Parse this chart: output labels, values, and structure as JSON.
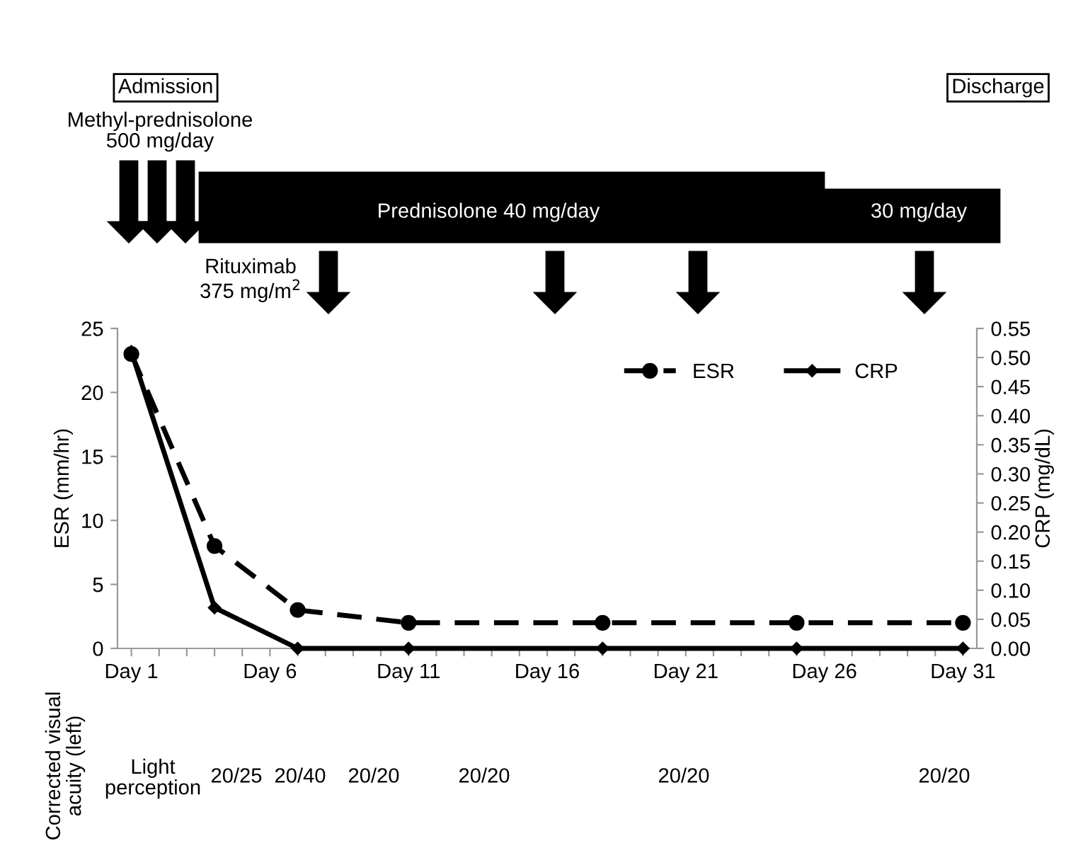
{
  "chart_data": {
    "type": "line",
    "xlabel": null,
    "ylabel": "ESR (mm/hr)",
    "y2label": "CRP (mg/dL)",
    "categories": [
      "Day 1",
      null,
      null,
      null,
      null,
      "Day 6",
      null,
      null,
      null,
      null,
      "Day 11",
      null,
      null,
      null,
      null,
      "Day 16",
      null,
      null,
      null,
      null,
      "Day 21",
      null,
      null,
      null,
      null,
      "Day 26",
      null,
      null,
      null,
      null,
      "Day 31"
    ],
    "series": [
      {
        "name": "ESR",
        "color": "#000000",
        "values": [
          23,
          null,
          null,
          8,
          null,
          null,
          3,
          null,
          null,
          null,
          2,
          null,
          null,
          null,
          null,
          null,
          null,
          2,
          null,
          null,
          null,
          null,
          null,
          null,
          2,
          null,
          null,
          null,
          null,
          null,
          2
        ],
        "marker": "circle",
        "line_style": "dashed"
      },
      {
        "name": "CRP",
        "color": "#000000",
        "values": [
          0.51,
          null,
          null,
          0.07,
          null,
          null,
          0,
          null,
          null,
          null,
          0,
          null,
          null,
          null,
          null,
          null,
          null,
          0,
          null,
          null,
          null,
          null,
          null,
          null,
          0,
          null,
          null,
          null,
          null,
          null,
          0
        ],
        "marker": "diamond",
        "line_style": "solid",
        "axis": "y2"
      }
    ],
    "ylim": [
      0,
      25
    ],
    "yticks": [
      0,
      5,
      10,
      15,
      20,
      25
    ],
    "y2lim": [
      0,
      0.55
    ],
    "y2ticks": [
      {
        "value": 0,
        "label": "0.00"
      },
      {
        "value": 0.05,
        "label": "0.05"
      },
      {
        "value": 0.1,
        "label": "0.10"
      },
      {
        "value": 0.15,
        "label": "0.15"
      },
      {
        "value": 0.2,
        "label": "0.20"
      },
      {
        "value": 0.25,
        "label": "0.25"
      },
      {
        "value": 0.3,
        "label": "0.30"
      },
      {
        "value": 0.35,
        "label": "0.35"
      },
      {
        "value": 0.4,
        "label": "0.40"
      },
      {
        "value": 0.45,
        "label": "0.45"
      },
      {
        "value": 0.5,
        "label": "0.50"
      },
      {
        "value": 0.55,
        "label": "0.55"
      }
    ],
    "grid": false,
    "legend": "top right",
    "annotations": [
      "Admission",
      "Discharge",
      "Methyl-prednisolone\n500 mg/day",
      "Prednisolone 40 mg/day",
      "30 mg/day",
      "Rituximab\n375 mg/m$^{2}$",
      "Corrected visual\nacuity (left)",
      "Light\nperception",
      "20/25",
      "20/40",
      "20/20",
      "20/20",
      "20/20",
      "20/20"
    ]
  }
}
